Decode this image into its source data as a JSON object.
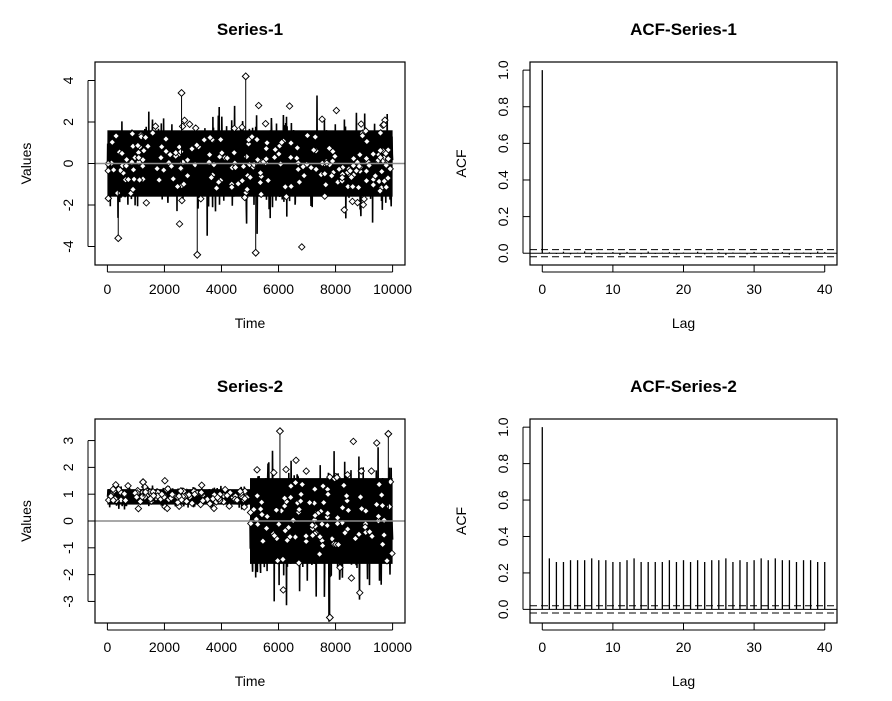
{
  "chart_data": [
    {
      "type": "scatter",
      "panel": "series-1",
      "title": "Series-1",
      "xlabel": "Time",
      "ylabel": "Values",
      "xlim": [
        0,
        10000
      ],
      "ylim": [
        -4.5,
        4.5
      ],
      "xticks": [
        0,
        2000,
        4000,
        6000,
        8000,
        10000
      ],
      "yticks": [
        -4,
        -2,
        0,
        2,
        4
      ],
      "tick_labels_x": [
        "0",
        "2000",
        "4000",
        "6000",
        "8000",
        "10000"
      ],
      "tick_labels_y": [
        "-4",
        "-2",
        "0",
        "2",
        "4"
      ],
      "hline": 0,
      "n_points": 10000,
      "segments": [
        {
          "x_start": 0,
          "x_end": 10000,
          "mean": 0,
          "sd": 1
        }
      ],
      "notable_points": [
        {
          "x": 4850,
          "y": 4.2
        },
        {
          "x": 3150,
          "y": -4.4
        },
        {
          "x": 5200,
          "y": -4.3
        },
        {
          "x": 2600,
          "y": 3.4
        },
        {
          "x": 380,
          "y": -3.6
        }
      ]
    },
    {
      "type": "bar",
      "panel": "acf-series-1",
      "title": "ACF-Series-1",
      "xlabel": "Lag",
      "ylabel": "ACF",
      "xlim": [
        0,
        40
      ],
      "ylim": [
        -0.02,
        1.0
      ],
      "xticks": [
        0,
        10,
        20,
        30,
        40
      ],
      "yticks": [
        0.0,
        0.2,
        0.4,
        0.6,
        0.8,
        1.0
      ],
      "tick_labels_x": [
        "0",
        "10",
        "20",
        "30",
        "40"
      ],
      "tick_labels_y": [
        "0.0",
        "0.2",
        "0.4",
        "0.6",
        "0.8",
        "1.0"
      ],
      "ci": 0.0196,
      "lags": [
        0,
        1,
        2,
        3,
        4,
        5,
        6,
        7,
        8,
        9,
        10,
        11,
        12,
        13,
        14,
        15,
        16,
        17,
        18,
        19,
        20,
        21,
        22,
        23,
        24,
        25,
        26,
        27,
        28,
        29,
        30,
        31,
        32,
        33,
        34,
        35,
        36,
        37,
        38,
        39,
        40
      ],
      "values": [
        1.0,
        0.005,
        -0.004,
        0.008,
        -0.006,
        0.003,
        0.01,
        -0.008,
        0.004,
        -0.003,
        0.006,
        -0.01,
        0.007,
        0.002,
        -0.005,
        0.009,
        -0.004,
        0.003,
        0.006,
        -0.007,
        0.004,
        -0.002,
        0.008,
        -0.006,
        0.003,
        0.005,
        -0.009,
        0.004,
        0.002,
        -0.006,
        0.007,
        -0.003,
        0.005,
        -0.004,
        0.006,
        -0.008,
        0.003,
        0.004,
        -0.005,
        0.009,
        0.006
      ]
    },
    {
      "type": "scatter",
      "panel": "series-2",
      "title": "Series-2",
      "xlabel": "Time",
      "ylabel": "Values",
      "xlim": [
        0,
        10000
      ],
      "ylim": [
        -3.5,
        3.5
      ],
      "xticks": [
        0,
        2000,
        4000,
        6000,
        8000,
        10000
      ],
      "yticks": [
        -3,
        -2,
        -1,
        0,
        1,
        2,
        3
      ],
      "tick_labels_x": [
        "0",
        "2000",
        "4000",
        "6000",
        "8000",
        "10000"
      ],
      "tick_labels_y": [
        "-3",
        "-2",
        "-1",
        "0",
        "1",
        "2",
        "3"
      ],
      "hline": 0,
      "n_points": 10000,
      "segments": [
        {
          "x_start": 0,
          "x_end": 5000,
          "mean": 0.9,
          "sd": 0.18
        },
        {
          "x_start": 5000,
          "x_end": 10000,
          "mean": 0,
          "sd": 1
        }
      ],
      "notable_points": [
        {
          "x": 7800,
          "y": -3.6
        },
        {
          "x": 6050,
          "y": 3.35
        },
        {
          "x": 9850,
          "y": 3.25
        },
        {
          "x": 1250,
          "y": 1.45
        }
      ]
    },
    {
      "type": "bar",
      "panel": "acf-series-2",
      "title": "ACF-Series-2",
      "xlabel": "Lag",
      "ylabel": "ACF",
      "xlim": [
        0,
        40
      ],
      "ylim": [
        -0.03,
        1.0
      ],
      "xticks": [
        0,
        10,
        20,
        30,
        40
      ],
      "yticks": [
        0.0,
        0.2,
        0.4,
        0.6,
        0.8,
        1.0
      ],
      "tick_labels_x": [
        "0",
        "10",
        "20",
        "30",
        "40"
      ],
      "tick_labels_y": [
        "0.0",
        "0.2",
        "0.4",
        "0.6",
        "0.8",
        "1.0"
      ],
      "ci": 0.0196,
      "lags": [
        0,
        1,
        2,
        3,
        4,
        5,
        6,
        7,
        8,
        9,
        10,
        11,
        12,
        13,
        14,
        15,
        16,
        17,
        18,
        19,
        20,
        21,
        22,
        23,
        24,
        25,
        26,
        27,
        28,
        29,
        30,
        31,
        32,
        33,
        34,
        35,
        36,
        37,
        38,
        39,
        40
      ],
      "values": [
        1.0,
        0.28,
        0.26,
        0.26,
        0.27,
        0.27,
        0.27,
        0.28,
        0.27,
        0.27,
        0.26,
        0.26,
        0.27,
        0.28,
        0.26,
        0.26,
        0.26,
        0.26,
        0.27,
        0.26,
        0.27,
        0.26,
        0.27,
        0.26,
        0.27,
        0.27,
        0.28,
        0.26,
        0.27,
        0.26,
        0.27,
        0.28,
        0.27,
        0.28,
        0.27,
        0.27,
        0.26,
        0.27,
        0.27,
        0.26,
        0.26
      ]
    }
  ]
}
